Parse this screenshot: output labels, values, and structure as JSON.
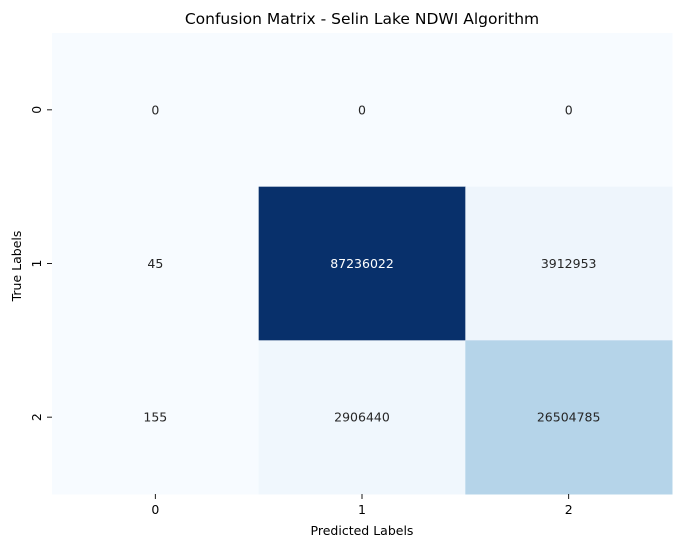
{
  "chart_data": {
    "type": "heatmap",
    "title": "Confusion Matrix - Selin Lake NDWI Algorithm",
    "xlabel": "Predicted Labels",
    "ylabel": "True Labels",
    "x_categories": [
      "0",
      "1",
      "2"
    ],
    "y_categories": [
      "0",
      "1",
      "2"
    ],
    "values": [
      [
        0,
        0,
        0
      ],
      [
        45,
        87236022,
        3912953
      ],
      [
        155,
        2906440,
        26504785
      ]
    ],
    "colormap": "Blues",
    "colorbar": false,
    "annotations": true
  }
}
